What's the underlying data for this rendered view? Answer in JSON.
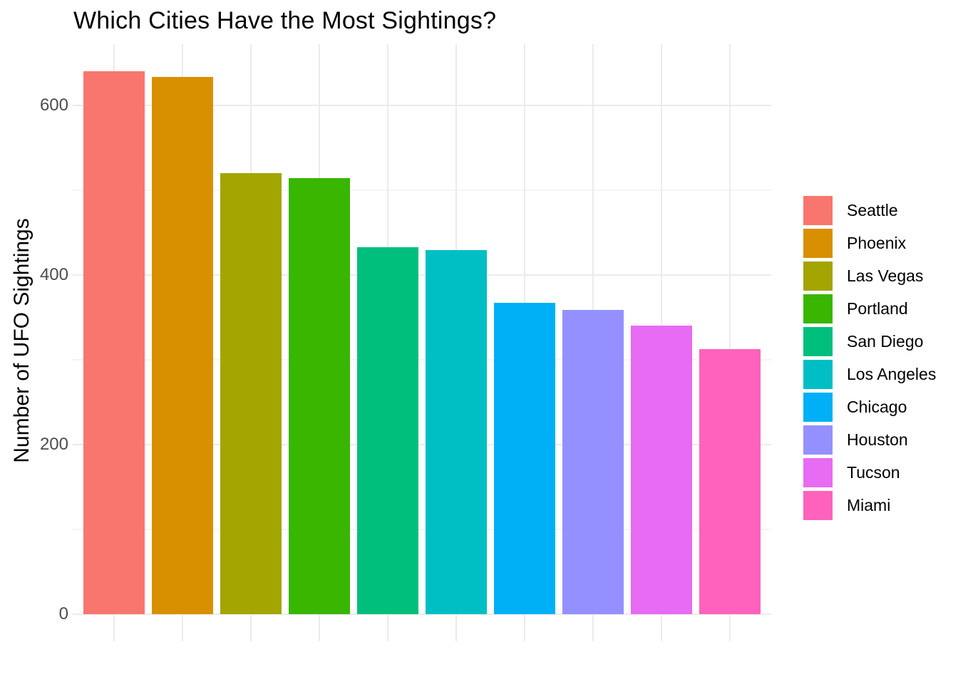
{
  "chart_data": {
    "type": "bar",
    "title": "Which Cities Have the Most Sightings?",
    "xlabel": "",
    "ylabel": "Number of UFO Sightings",
    "categories": [
      "Seattle",
      "Phoenix",
      "Las Vegas",
      "Portland",
      "San Diego",
      "Los Angeles",
      "Chicago",
      "Houston",
      "Tucson",
      "Miami"
    ],
    "values": [
      640,
      634,
      520,
      514,
      433,
      429,
      367,
      359,
      340,
      313
    ],
    "bar_colors": [
      "#F8766D",
      "#D89000",
      "#A3A500",
      "#39B600",
      "#00BF7D",
      "#00BFC4",
      "#00B0F6",
      "#9590FF",
      "#E76BF3",
      "#FF62BC"
    ],
    "y_axis": {
      "tick_labels": [
        "0",
        "200",
        "400",
        "600"
      ],
      "major_ticks": [
        0,
        200,
        400,
        600
      ],
      "minor_gridlines": [
        100,
        300,
        500
      ],
      "range": [
        0,
        672
      ]
    },
    "x_axis": {
      "tick_labels": []
    },
    "grid": true,
    "legend_position": "right",
    "background": "#FFFFFF"
  },
  "theme": {
    "grid_major_color": "#EBEBEB",
    "grid_minor_color": "#F4F4F4",
    "axis_text_color": "#4D4D4D",
    "title_color": "#000000",
    "legend_text_color": "#000000"
  }
}
